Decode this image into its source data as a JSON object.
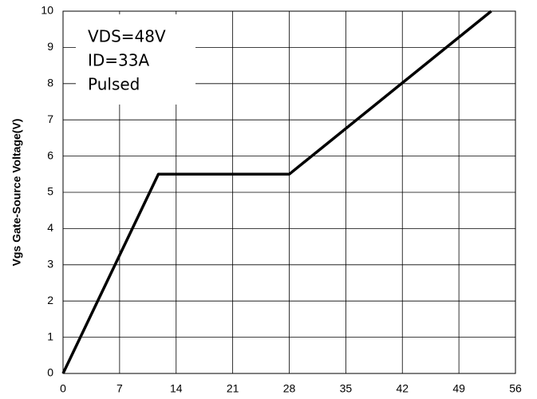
{
  "chart_data": {
    "type": "line",
    "y_label": "Vgs Gate-Source Voltage(V)",
    "annotations": [
      "VDS=48V",
      "ID=33A",
      "Pulsed"
    ],
    "x": [
      0,
      11.8,
      28,
      53
    ],
    "series": [
      {
        "color": "#000000",
        "values": [
          0,
          5.5,
          5.5,
          10
        ]
      }
    ],
    "xlim": [
      0,
      56
    ],
    "xticks": [
      0,
      7,
      14,
      21,
      28,
      35,
      42,
      49,
      56
    ],
    "ylim": [
      0,
      10
    ],
    "yticks": [
      0,
      1,
      2,
      3,
      4,
      5,
      6,
      7,
      8,
      9,
      10
    ],
    "grid": true
  }
}
